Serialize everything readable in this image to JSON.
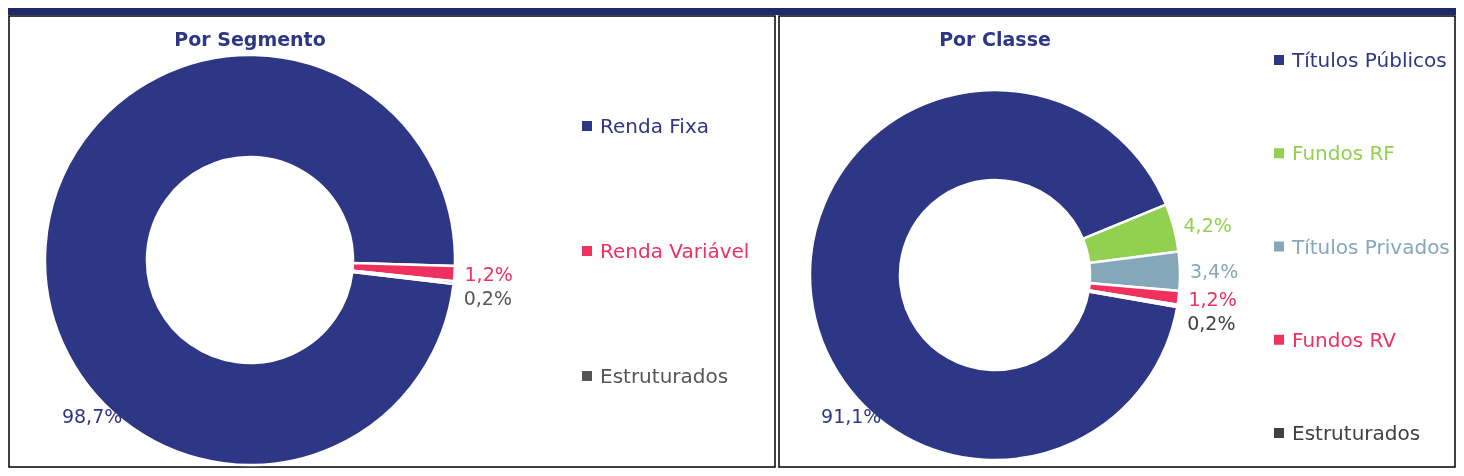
{
  "chart_data": [
    {
      "type": "donut",
      "title": "Por Segmento",
      "categories": [
        "Renda Fixa",
        "Renda Variável",
        "Estruturados"
      ],
      "values": [
        98.7,
        1.2,
        0.2
      ],
      "colors": [
        "#2e3785",
        "#f0305f",
        "#555555"
      ],
      "value_labels": [
        "98,7%",
        "1,2%",
        "0,2%"
      ],
      "legend": "right"
    },
    {
      "type": "donut",
      "title": "Por Classe",
      "categories": [
        "Títulos Públicos",
        "Fundos RF",
        "Títulos Privados",
        "Fundos RV",
        "Estruturados"
      ],
      "values": [
        91.1,
        4.2,
        3.4,
        1.2,
        0.2
      ],
      "colors": [
        "#2e3785",
        "#92d050",
        "#84a7ba",
        "#f0305f",
        "#404040"
      ],
      "value_labels": [
        "91,1%",
        "4,2%",
        "3,4%",
        "1,2%",
        "0,2%"
      ],
      "legend": "right"
    }
  ]
}
